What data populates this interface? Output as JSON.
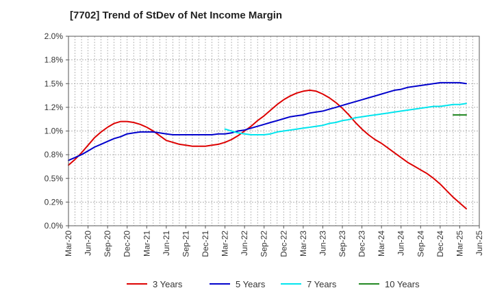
{
  "chart_data": {
    "type": "line",
    "title": "[7702]  Trend of StDev of Net Income Margin",
    "xlabel": "",
    "ylabel": "",
    "x_ticks": [
      "Mar-20",
      "Jun-20",
      "Sep-20",
      "Dec-20",
      "Mar-21",
      "Jun-21",
      "Sep-21",
      "Dec-21",
      "Mar-22",
      "Jun-22",
      "Sep-22",
      "Dec-22",
      "Mar-23",
      "Jun-23",
      "Sep-23",
      "Dec-23",
      "Mar-24",
      "Jun-24",
      "Sep-24",
      "Dec-24",
      "Mar-25",
      "Jun-25"
    ],
    "y_ticks": [
      "0.0%",
      "0.2%",
      "0.5%",
      "0.8%",
      "1.0%",
      "1.2%",
      "1.5%",
      "1.8%",
      "2.0%"
    ],
    "y_tick_values": [
      0,
      0.25,
      0.5,
      0.75,
      1.0,
      1.25,
      1.5,
      1.75,
      2.0
    ],
    "ylim": [
      0,
      2.0
    ],
    "grid": true,
    "legend_position": "bottom",
    "series": [
      {
        "name": "3 Years",
        "color": "#dd0000",
        "points": [
          [
            "Mar-20",
            0.64
          ],
          [
            "Apr-20",
            0.7
          ],
          [
            "May-20",
            0.77
          ],
          [
            "Jun-20",
            0.85
          ],
          [
            "Jul-20",
            0.93
          ],
          [
            "Aug-20",
            0.99
          ],
          [
            "Sep-20",
            1.04
          ],
          [
            "Oct-20",
            1.08
          ],
          [
            "Nov-20",
            1.1
          ],
          [
            "Dec-20",
            1.1
          ],
          [
            "Jan-21",
            1.09
          ],
          [
            "Feb-21",
            1.07
          ],
          [
            "Mar-21",
            1.04
          ],
          [
            "Apr-21",
            1.0
          ],
          [
            "May-21",
            0.95
          ],
          [
            "Jun-21",
            0.9
          ],
          [
            "Jul-21",
            0.88
          ],
          [
            "Aug-21",
            0.86
          ],
          [
            "Sep-21",
            0.85
          ],
          [
            "Oct-21",
            0.84
          ],
          [
            "Nov-21",
            0.84
          ],
          [
            "Dec-21",
            0.84
          ],
          [
            "Jan-22",
            0.85
          ],
          [
            "Feb-22",
            0.86
          ],
          [
            "Mar-22",
            0.88
          ],
          [
            "Apr-22",
            0.91
          ],
          [
            "May-22",
            0.95
          ],
          [
            "Jun-22",
            1.0
          ],
          [
            "Jul-22",
            1.05
          ],
          [
            "Aug-22",
            1.11
          ],
          [
            "Sep-22",
            1.16
          ],
          [
            "Oct-22",
            1.22
          ],
          [
            "Nov-22",
            1.28
          ],
          [
            "Dec-22",
            1.33
          ],
          [
            "Jan-23",
            1.37
          ],
          [
            "Feb-23",
            1.4
          ],
          [
            "Mar-23",
            1.42
          ],
          [
            "Apr-23",
            1.43
          ],
          [
            "May-23",
            1.42
          ],
          [
            "Jun-23",
            1.39
          ],
          [
            "Jul-23",
            1.35
          ],
          [
            "Aug-23",
            1.3
          ],
          [
            "Sep-23",
            1.24
          ],
          [
            "Oct-23",
            1.17
          ],
          [
            "Nov-23",
            1.09
          ],
          [
            "Dec-23",
            1.02
          ],
          [
            "Jan-24",
            0.96
          ],
          [
            "Feb-24",
            0.91
          ],
          [
            "Mar-24",
            0.87
          ],
          [
            "Apr-24",
            0.82
          ],
          [
            "May-24",
            0.77
          ],
          [
            "Jun-24",
            0.72
          ],
          [
            "Jul-24",
            0.67
          ],
          [
            "Aug-24",
            0.63
          ],
          [
            "Sep-24",
            0.59
          ],
          [
            "Oct-24",
            0.55
          ],
          [
            "Nov-24",
            0.5
          ],
          [
            "Dec-24",
            0.44
          ],
          [
            "Jan-25",
            0.37
          ],
          [
            "Feb-25",
            0.3
          ],
          [
            "Mar-25",
            0.24
          ],
          [
            "Apr-25",
            0.18
          ]
        ]
      },
      {
        "name": "5 Years",
        "color": "#0000cc",
        "points": [
          [
            "Mar-20",
            0.69
          ],
          [
            "Apr-20",
            0.72
          ],
          [
            "May-20",
            0.75
          ],
          [
            "Jun-20",
            0.79
          ],
          [
            "Jul-20",
            0.83
          ],
          [
            "Aug-20",
            0.86
          ],
          [
            "Sep-20",
            0.89
          ],
          [
            "Oct-20",
            0.92
          ],
          [
            "Nov-20",
            0.94
          ],
          [
            "Dec-20",
            0.97
          ],
          [
            "Jan-21",
            0.98
          ],
          [
            "Feb-21",
            0.99
          ],
          [
            "Mar-21",
            0.99
          ],
          [
            "Apr-21",
            0.99
          ],
          [
            "May-21",
            0.98
          ],
          [
            "Jun-21",
            0.97
          ],
          [
            "Jul-21",
            0.96
          ],
          [
            "Aug-21",
            0.96
          ],
          [
            "Sep-21",
            0.96
          ],
          [
            "Oct-21",
            0.96
          ],
          [
            "Nov-21",
            0.96
          ],
          [
            "Dec-21",
            0.96
          ],
          [
            "Jan-22",
            0.96
          ],
          [
            "Feb-22",
            0.97
          ],
          [
            "Mar-22",
            0.97
          ],
          [
            "Apr-22",
            0.98
          ],
          [
            "May-22",
            1.0
          ],
          [
            "Jun-22",
            1.01
          ],
          [
            "Jul-22",
            1.03
          ],
          [
            "Aug-22",
            1.05
          ],
          [
            "Sep-22",
            1.07
          ],
          [
            "Oct-22",
            1.09
          ],
          [
            "Nov-22",
            1.11
          ],
          [
            "Dec-22",
            1.13
          ],
          [
            "Jan-23",
            1.15
          ],
          [
            "Feb-23",
            1.16
          ],
          [
            "Mar-23",
            1.17
          ],
          [
            "Apr-23",
            1.19
          ],
          [
            "May-23",
            1.2
          ],
          [
            "Jun-23",
            1.21
          ],
          [
            "Jul-23",
            1.23
          ],
          [
            "Aug-23",
            1.25
          ],
          [
            "Sep-23",
            1.27
          ],
          [
            "Oct-23",
            1.29
          ],
          [
            "Nov-23",
            1.31
          ],
          [
            "Dec-23",
            1.33
          ],
          [
            "Jan-24",
            1.35
          ],
          [
            "Feb-24",
            1.37
          ],
          [
            "Mar-24",
            1.39
          ],
          [
            "Apr-24",
            1.41
          ],
          [
            "May-24",
            1.43
          ],
          [
            "Jun-24",
            1.44
          ],
          [
            "Jul-24",
            1.46
          ],
          [
            "Aug-24",
            1.47
          ],
          [
            "Sep-24",
            1.48
          ],
          [
            "Oct-24",
            1.49
          ],
          [
            "Nov-24",
            1.5
          ],
          [
            "Dec-24",
            1.51
          ],
          [
            "Jan-25",
            1.51
          ],
          [
            "Feb-25",
            1.51
          ],
          [
            "Mar-25",
            1.51
          ],
          [
            "Apr-25",
            1.5
          ]
        ]
      },
      {
        "name": "7 Years",
        "color": "#00e5ee",
        "points": [
          [
            "Mar-22",
            1.02
          ],
          [
            "Apr-22",
            1.0
          ],
          [
            "May-22",
            0.98
          ],
          [
            "Jun-22",
            0.97
          ],
          [
            "Jul-22",
            0.96
          ],
          [
            "Aug-22",
            0.96
          ],
          [
            "Sep-22",
            0.96
          ],
          [
            "Oct-22",
            0.97
          ],
          [
            "Nov-22",
            0.99
          ],
          [
            "Dec-22",
            1.0
          ],
          [
            "Jan-23",
            1.01
          ],
          [
            "Feb-23",
            1.02
          ],
          [
            "Mar-23",
            1.03
          ],
          [
            "Apr-23",
            1.04
          ],
          [
            "May-23",
            1.05
          ],
          [
            "Jun-23",
            1.06
          ],
          [
            "Jul-23",
            1.08
          ],
          [
            "Aug-23",
            1.09
          ],
          [
            "Sep-23",
            1.11
          ],
          [
            "Oct-23",
            1.12
          ],
          [
            "Nov-23",
            1.14
          ],
          [
            "Dec-23",
            1.15
          ],
          [
            "Jan-24",
            1.16
          ],
          [
            "Feb-24",
            1.17
          ],
          [
            "Mar-24",
            1.18
          ],
          [
            "Apr-24",
            1.19
          ],
          [
            "May-24",
            1.2
          ],
          [
            "Jun-24",
            1.21
          ],
          [
            "Jul-24",
            1.22
          ],
          [
            "Aug-24",
            1.23
          ],
          [
            "Sep-24",
            1.24
          ],
          [
            "Oct-24",
            1.25
          ],
          [
            "Nov-24",
            1.26
          ],
          [
            "Dec-24",
            1.26
          ],
          [
            "Jan-25",
            1.27
          ],
          [
            "Feb-25",
            1.28
          ],
          [
            "Mar-25",
            1.28
          ],
          [
            "Apr-25",
            1.29
          ]
        ]
      },
      {
        "name": "10 Years",
        "color": "#228822",
        "points": [
          [
            "Feb-25",
            1.17
          ],
          [
            "Apr-25",
            1.17
          ]
        ]
      }
    ]
  }
}
